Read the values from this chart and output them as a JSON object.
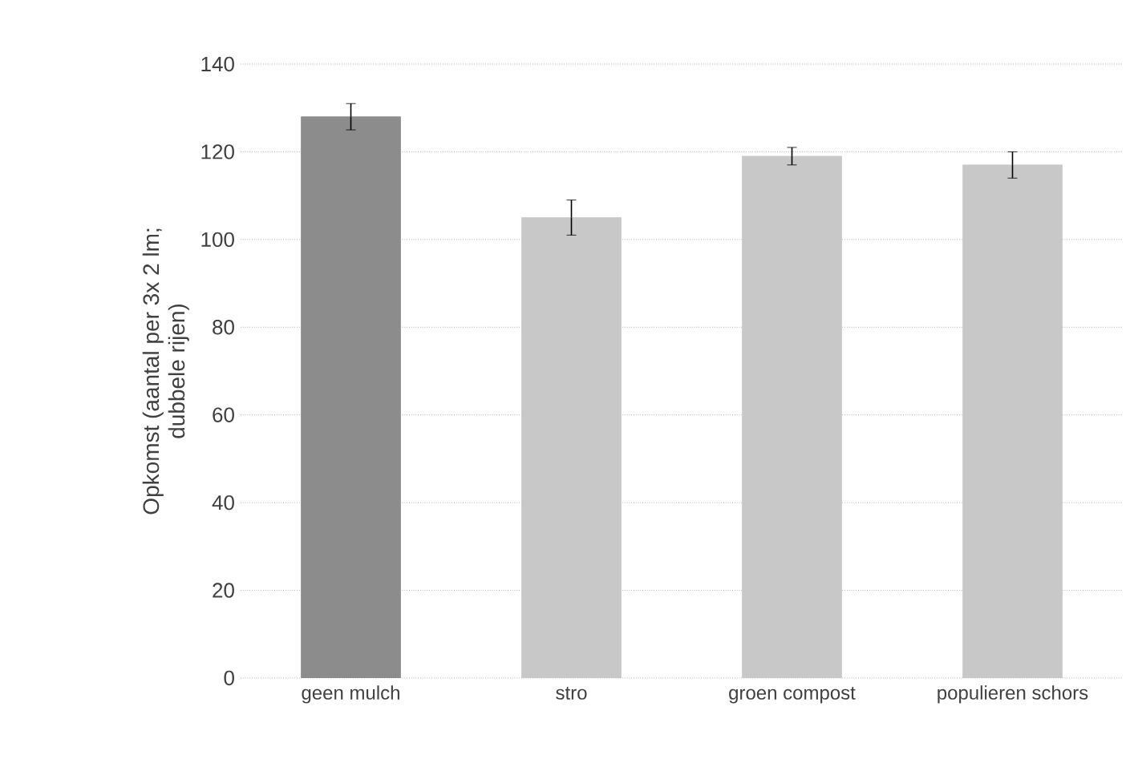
{
  "chart_data": {
    "type": "bar",
    "ylabel": "Opkomst (aantal per 3x 2 lm; dubbele rijen)",
    "categories": [
      "geen mulch",
      "stro",
      "groen compost",
      "populieren schors"
    ],
    "values": [
      128,
      105,
      119,
      117
    ],
    "colors": [
      "#8c8c8c",
      "#c8c8c8",
      "#c8c8c8",
      "#c8c8c8"
    ],
    "errors": [
      3,
      4,
      2,
      3
    ],
    "ylim": [
      0,
      140
    ],
    "yticks": [
      0,
      20,
      40,
      60,
      80,
      100,
      120,
      140
    ],
    "grid": "y"
  }
}
